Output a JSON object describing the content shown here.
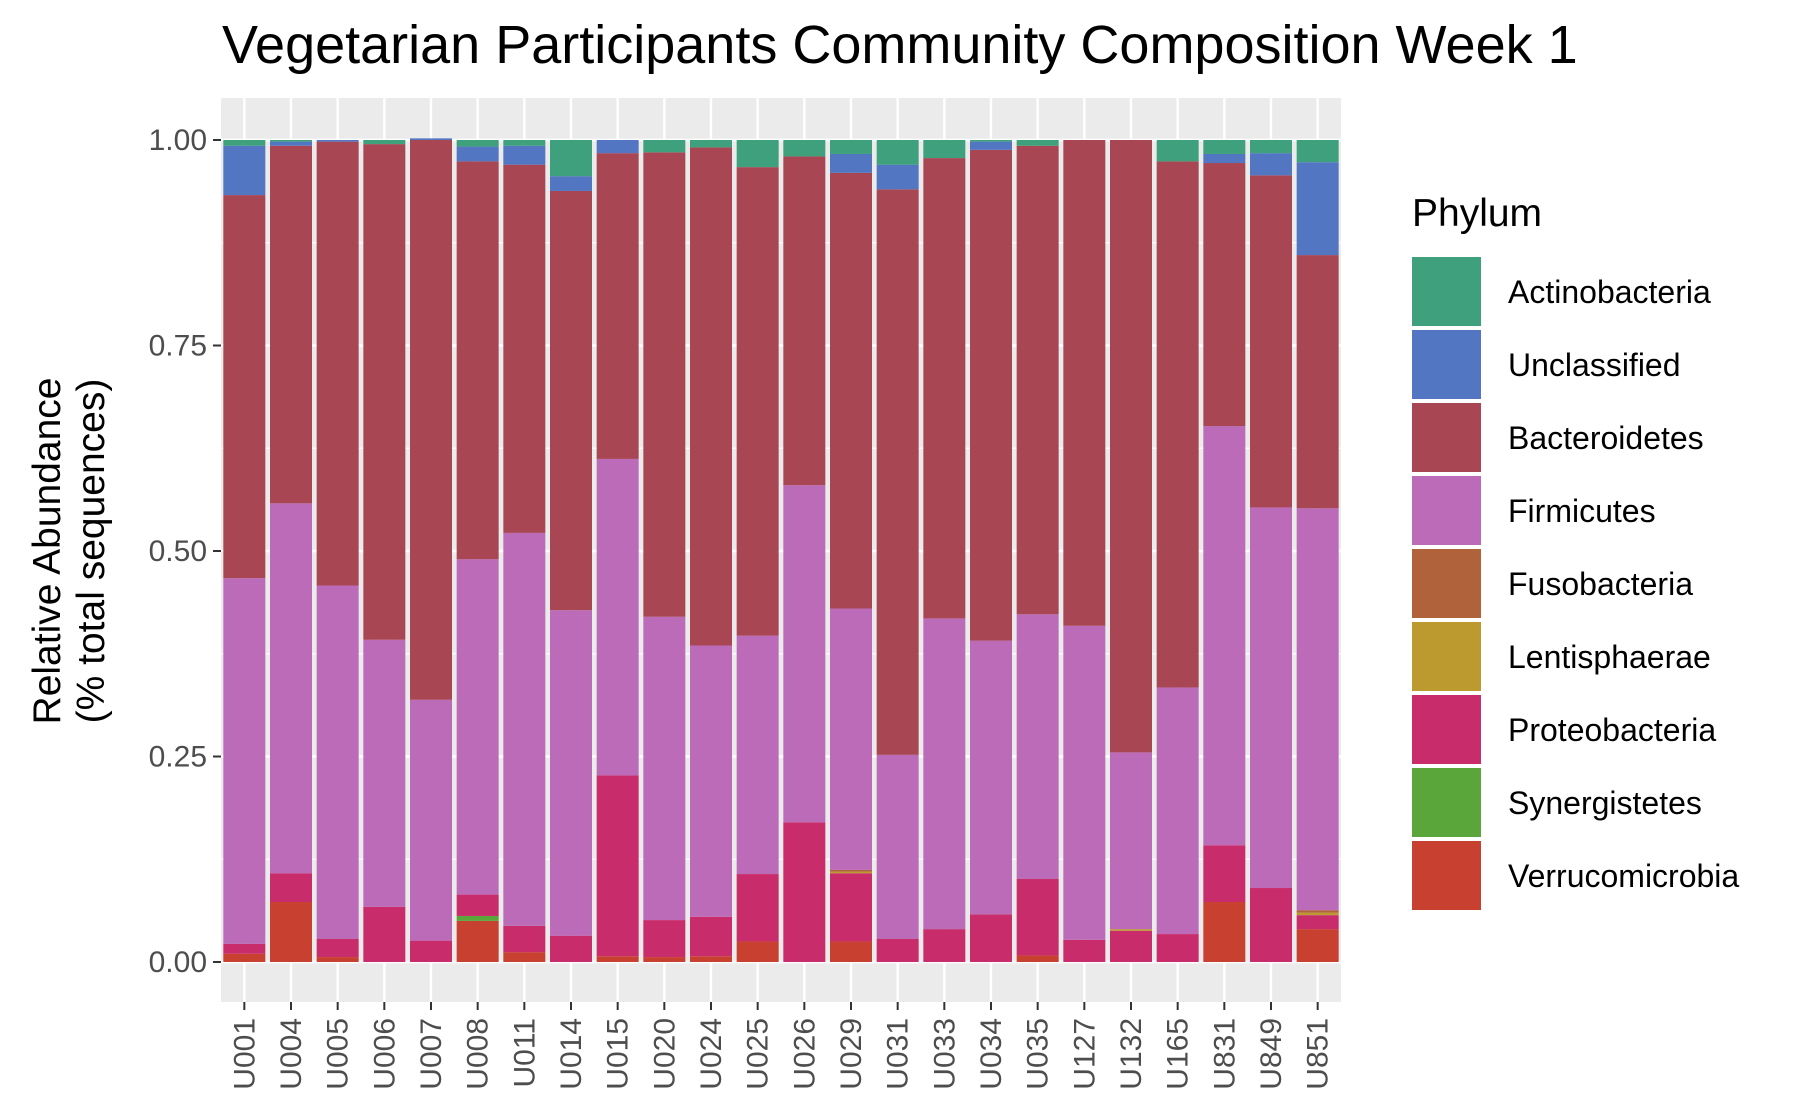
{
  "chart_data": {
    "type": "bar",
    "stacked": true,
    "title": "Vegetarian Participants Community Composition Week 1",
    "xlabel": "",
    "ylabel": [
      "Relative Abundance",
      "(% total sequences)"
    ],
    "ylim": [
      0,
      1.05
    ],
    "yticks": [
      0,
      0.25,
      0.5,
      0.75,
      1
    ],
    "ytick_labels": [
      "0.00",
      "0.25",
      "0.50",
      "0.75",
      "1.00"
    ],
    "grid": true,
    "legend": {
      "title": "Phylum",
      "position": "right"
    },
    "categories": [
      "U001",
      "U004",
      "U005",
      "U006",
      "U007",
      "U008",
      "U011",
      "U014",
      "U015",
      "U020",
      "U024",
      "U025",
      "U026",
      "U029",
      "U031",
      "U033",
      "U034",
      "U035",
      "U127",
      "U132",
      "U165",
      "U831",
      "U849",
      "U851"
    ],
    "series": [
      {
        "name": "Verrucomicrobia",
        "color": "#c8402f",
        "values": [
          0.01,
          0.073,
          0.006,
          0,
          0,
          0.05,
          0.012,
          0,
          0.007,
          0.006,
          0.007,
          0.025,
          0,
          0.025,
          0,
          0,
          0,
          0.008,
          0,
          0,
          0,
          0.073,
          0,
          0.04
        ]
      },
      {
        "name": "Synergistetes",
        "color": "#5aa63a",
        "values": [
          0,
          0,
          0,
          0,
          0,
          0.006,
          0,
          0,
          0,
          0,
          0,
          0,
          0,
          0,
          0,
          0,
          0,
          0,
          0,
          0,
          0,
          0,
          0,
          0
        ]
      },
      {
        "name": "Proteobacteria",
        "color": "#c92c6b",
        "values": [
          0.012,
          0.035,
          0.022,
          0.067,
          0.026,
          0.026,
          0.032,
          0.032,
          0.22,
          0.045,
          0.048,
          0.082,
          0.17,
          0.083,
          0.028,
          0.04,
          0.058,
          0.093,
          0.027,
          0.038,
          0.034,
          0.069,
          0.09,
          0.017
        ]
      },
      {
        "name": "Lentisphaerae",
        "color": "#bc9a30",
        "values": [
          0,
          0,
          0,
          0,
          0,
          0,
          0,
          0,
          0,
          0,
          0,
          0,
          0,
          0.002,
          0,
          0,
          0,
          0,
          0,
          0.002,
          0,
          0,
          0,
          0.003
        ]
      },
      {
        "name": "Fusobacteria",
        "color": "#b0633a",
        "values": [
          0,
          0,
          0,
          0,
          0,
          0,
          0,
          0,
          0,
          0,
          0,
          0,
          0,
          0.002,
          0,
          0,
          0,
          0,
          0,
          0,
          0,
          0,
          0,
          0.003
        ]
      },
      {
        "name": "Firmicutes",
        "color": "#bb6bb8",
        "values": [
          0.445,
          0.45,
          0.43,
          0.325,
          0.293,
          0.408,
          0.478,
          0.396,
          0.385,
          0.369,
          0.33,
          0.29,
          0.41,
          0.318,
          0.224,
          0.378,
          0.333,
          0.322,
          0.382,
          0.215,
          0.3,
          0.51,
          0.463,
          0.489
        ]
      },
      {
        "name": "Bacteroidetes",
        "color": "#a84654",
        "values": [
          0.466,
          0.435,
          0.54,
          0.603,
          0.681,
          0.484,
          0.448,
          0.51,
          0.372,
          0.565,
          0.606,
          0.57,
          0.4,
          0.53,
          0.688,
          0.56,
          0.597,
          0.57,
          0.591,
          0.745,
          0.64,
          0.32,
          0.404,
          0.308
        ]
      },
      {
        "name": "Unclassified",
        "color": "#5276c2",
        "values": [
          0.06,
          0.005,
          0.002,
          0,
          0.002,
          0.018,
          0.023,
          0.018,
          0.016,
          0,
          0,
          0,
          0,
          0.023,
          0.03,
          0,
          0.01,
          0,
          0,
          0,
          0,
          0.011,
          0.027,
          0.113
        ]
      },
      {
        "name": "Actinobacteria",
        "color": "#3ea07c",
        "values": [
          0.007,
          0.002,
          0,
          0.005,
          0,
          0.008,
          0.007,
          0.044,
          0,
          0.015,
          0.009,
          0.033,
          0.02,
          0.017,
          0.03,
          0.022,
          0.002,
          0.007,
          0,
          0,
          0.026,
          0.017,
          0.016,
          0.027
        ]
      }
    ]
  }
}
